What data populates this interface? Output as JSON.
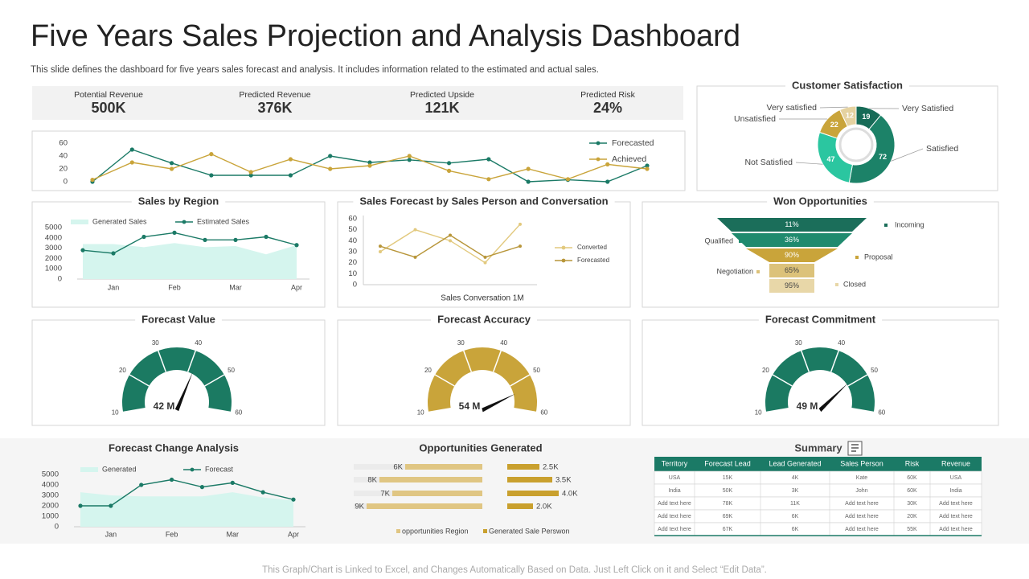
{
  "title": "Five Years Sales Projection and Analysis Dashboard",
  "subtitle": "This slide defines the dashboard for five years sales forecast and analysis. It includes information related to the estimated and actual sales.",
  "kpis": [
    {
      "label": "Potential Revenue",
      "value": "500K"
    },
    {
      "label": "Predicted Revenue",
      "value": "376K"
    },
    {
      "label": "Predicted Upside",
      "value": "121K"
    },
    {
      "label": "Predicted Risk",
      "value": "24%"
    }
  ],
  "chart_data": [
    {
      "type": "line",
      "categories": [
        null,
        null,
        null,
        null,
        null,
        null,
        null,
        null,
        null,
        null,
        null,
        null,
        null,
        null,
        null
      ],
      "ylim": [
        0,
        60
      ],
      "yticks": [
        0,
        20,
        40,
        60
      ],
      "legend": "top-right",
      "series": [
        {
          "name": "Forecasted",
          "color": "#1b7a66",
          "values": [
            0,
            50,
            29,
            10,
            10,
            10,
            40,
            30,
            34,
            29,
            35,
            0,
            3,
            0,
            25
          ]
        },
        {
          "name": "Achieved",
          "color": "#c9a43a",
          "values": [
            3,
            30,
            20,
            43,
            15,
            35,
            20,
            25,
            40,
            17,
            4,
            20,
            4,
            27,
            20
          ]
        }
      ]
    },
    {
      "type": "line",
      "title": "Sales by Region",
      "categories": [
        null,
        "Jan",
        null,
        "Feb",
        null,
        "Mar",
        null,
        "Apr"
      ],
      "ylim": [
        0,
        5000
      ],
      "yticks": [
        0,
        1000,
        2000,
        3000,
        4000,
        5000
      ],
      "legend": "top-left",
      "series": [
        {
          "name": "Generated Sales",
          "kind": "area",
          "color": "#d5f5ee",
          "values": [
            3400,
            3400,
            3100,
            3500,
            3100,
            3200,
            2400,
            3300
          ]
        },
        {
          "name": "Estimated Sales",
          "color": "#1b7a66",
          "values": [
            2800,
            2500,
            4100,
            4500,
            3800,
            3800,
            4100,
            3300
          ]
        }
      ]
    },
    {
      "type": "line",
      "title": "Sales Forecast by Sales Person and Conversation",
      "xlabel": "Sales Conversation 1M",
      "categories": [
        null,
        null,
        null,
        null,
        null
      ],
      "ylim": [
        0,
        60
      ],
      "yticks": [
        0,
        10,
        20,
        30,
        40,
        50,
        60
      ],
      "legend": "right",
      "series": [
        {
          "name": "Converted",
          "color": "#e2c97e",
          "values": [
            30,
            50,
            40,
            20,
            55
          ]
        },
        {
          "name": "Forecasted",
          "color": "#b8963a",
          "values": [
            35,
            25,
            45,
            25,
            35
          ]
        }
      ]
    },
    {
      "type": "funnel",
      "title": "Won Opportunities",
      "categories": [
        "Incoming",
        "Qualified",
        "Proposal",
        "Negotiation",
        "Closed"
      ],
      "values": [
        11,
        36,
        90,
        65,
        95
      ],
      "value_labels": [
        "11%",
        "36%",
        "90%",
        "65%",
        "95%"
      ],
      "colors": [
        "#1b6e5a",
        "#1f8a6e",
        "#c9a43a",
        "#dcc27a",
        "#e8d7a8"
      ]
    },
    {
      "type": "pie",
      "title": "Customer Satisfaction",
      "donut": true,
      "categories": [
        "Very Satisfied",
        "Satisfied",
        "Not Satisfied",
        "Unsatisfied",
        "Very satisfied"
      ],
      "values": [
        19,
        72,
        47,
        22,
        12
      ],
      "colors": [
        "#176b57",
        "#1c8268",
        "#2bc6a0",
        "#c9a43a",
        "#e5d2a0"
      ]
    },
    {
      "type": "gauge",
      "title": "Forecast Value",
      "value": 42,
      "value_label": "42 M",
      "ylim": [
        10,
        60
      ],
      "yticks": [
        10,
        20,
        30,
        40,
        50,
        60
      ],
      "color": "#1b7a62"
    },
    {
      "type": "gauge",
      "title": "Forecast Accuracy",
      "value": 54,
      "value_label": "54 M",
      "ylim": [
        10,
        60
      ],
      "yticks": [
        10,
        20,
        30,
        40,
        50,
        60
      ],
      "color": "#c9a43a"
    },
    {
      "type": "gauge",
      "title": "Forecast Commitment",
      "value": 49,
      "value_label": "49 M",
      "ylim": [
        10,
        60
      ],
      "yticks": [
        10,
        20,
        30,
        40,
        50,
        60
      ],
      "color": "#1b7a62"
    },
    {
      "type": "line",
      "title": "Forecast Change Analysis",
      "categories": [
        null,
        "Jan",
        null,
        "Feb",
        null,
        "Mar",
        null,
        "Apr"
      ],
      "ylim": [
        0,
        5000
      ],
      "yticks": [
        0,
        1000,
        2000,
        3000,
        4000,
        5000
      ],
      "legend": "top-left",
      "series": [
        {
          "name": "Generated",
          "kind": "area",
          "color": "#d5f5ee",
          "values": [
            3300,
            3000,
            2900,
            2900,
            2900,
            3300,
            2800,
            2500
          ]
        },
        {
          "name": "Forecast",
          "color": "#1b7a66",
          "values": [
            2000,
            2000,
            4000,
            4500,
            3800,
            4200,
            3300,
            2600
          ]
        }
      ]
    },
    {
      "type": "hbar",
      "title": "Opportunities Generated",
      "xlim": [
        0,
        10000
      ],
      "legend": "bottom",
      "series": [
        {
          "name": "opportunities Region",
          "color": "#e0c683",
          "values": [
            6000,
            8000,
            7000,
            9000
          ],
          "value_labels": [
            "6K",
            "8K",
            "7K",
            "9K"
          ]
        },
        {
          "name": "Generated Sale Perswon",
          "color": "#c9a02e",
          "values": [
            2500,
            3500,
            4000,
            2000
          ],
          "value_labels": [
            "2.5K",
            "3.5K",
            "4.0K",
            "2.0K"
          ]
        }
      ]
    }
  ],
  "summary": {
    "title": "Summary",
    "columns": [
      "Territory",
      "Forecast Lead",
      "Lead Generated",
      "Sales Person",
      "Risk",
      "Revenue"
    ],
    "rows": [
      [
        "USA",
        "15K",
        "4K",
        "Kate",
        "60K",
        "USA"
      ],
      [
        "India",
        "50K",
        "3K",
        "John",
        "60K",
        "India"
      ],
      [
        "Add text here",
        "78K",
        "11K",
        "Add text here",
        "30K",
        "Add text here"
      ],
      [
        "Add text here",
        "69K",
        "6K",
        "Add text here",
        "20K",
        "Add text here"
      ],
      [
        "Add text here",
        "67K",
        "6K",
        "Add text here",
        "55K",
        "Add text here"
      ]
    ]
  },
  "footer": "This Graph/Chart is Linked to Excel, and Changes Automatically Based on Data. Just Left Click on it and Select “Edit Data”."
}
